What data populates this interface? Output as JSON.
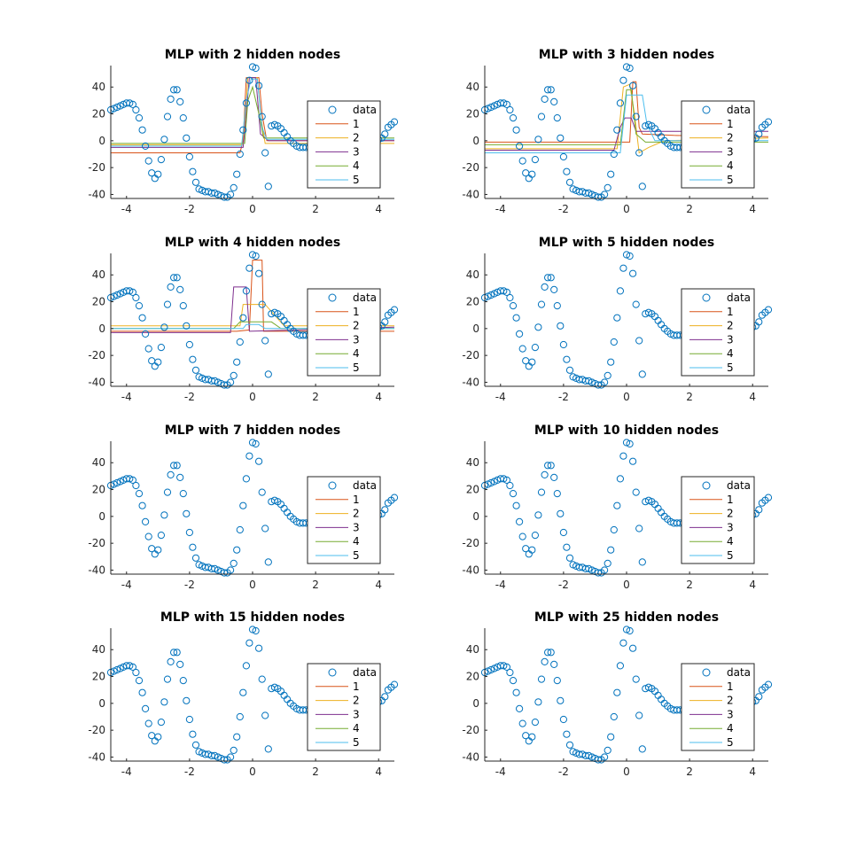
{
  "colors": {
    "data": "#0072BD",
    "series": [
      "#D95319",
      "#EDB120",
      "#7E2F8E",
      "#77AC30",
      "#4DBEEE"
    ],
    "axis": "#262626"
  },
  "chart_data": [
    {
      "type": "line",
      "title": "MLP with 2 hidden nodes",
      "xlim": [
        -4.5,
        4.5
      ],
      "ylim": [
        -43,
        56
      ],
      "xticks": [
        -4,
        -2,
        0,
        2,
        4
      ],
      "yticks": [
        -40,
        -20,
        0,
        20,
        40
      ],
      "legend": {
        "position": "inside-right",
        "entries": [
          "data",
          "1",
          "2",
          "3",
          "4",
          "5"
        ]
      },
      "series": [
        {
          "name": "1",
          "points": [
            [
              -4.5,
              -9
            ],
            [
              -0.4,
              -9
            ],
            [
              -0.3,
              0
            ],
            [
              -0.2,
              47
            ],
            [
              0.2,
              47
            ],
            [
              0.3,
              20
            ],
            [
              0.45,
              0
            ],
            [
              4.5,
              0
            ]
          ]
        },
        {
          "name": "2",
          "points": [
            [
              -4.5,
              -3
            ],
            [
              -0.35,
              -3
            ],
            [
              -0.25,
              10
            ],
            [
              -0.15,
              47
            ],
            [
              0.15,
              47
            ],
            [
              0.25,
              20
            ],
            [
              0.4,
              -2
            ],
            [
              4.5,
              -2
            ]
          ]
        },
        {
          "name": "3",
          "points": [
            [
              -4.5,
              -5
            ],
            [
              -0.3,
              -5
            ],
            [
              -0.2,
              20
            ],
            [
              -0.1,
              47
            ],
            [
              0.1,
              47
            ],
            [
              0.25,
              5
            ],
            [
              0.5,
              0
            ],
            [
              4.5,
              0
            ]
          ]
        },
        {
          "name": "4",
          "points": [
            [
              -4.5,
              -2
            ],
            [
              -0.25,
              -2
            ],
            [
              -0.15,
              30
            ],
            [
              0,
              40
            ],
            [
              0.2,
              20
            ],
            [
              0.35,
              2
            ],
            [
              4.5,
              2
            ]
          ]
        },
        {
          "name": "5",
          "points": [
            [
              -4.5,
              -4
            ],
            [
              -0.35,
              -4
            ],
            [
              -0.2,
              30
            ],
            [
              -0.05,
              46
            ],
            [
              0.15,
              46
            ],
            [
              0.3,
              10
            ],
            [
              0.45,
              1
            ],
            [
              4.5,
              1
            ]
          ]
        }
      ]
    },
    {
      "type": "line",
      "title": "MLP with 3 hidden nodes",
      "xlim": [
        -4.5,
        4.5
      ],
      "ylim": [
        -43,
        56
      ],
      "xticks": [
        -4,
        -2,
        0,
        2,
        4
      ],
      "yticks": [
        -40,
        -20,
        0,
        20,
        40
      ],
      "legend": {
        "position": "inside-right",
        "entries": [
          "data",
          "1",
          "2",
          "3",
          "4",
          "5"
        ]
      },
      "series": [
        {
          "name": "1",
          "points": [
            [
              -4.5,
              -1
            ],
            [
              0.1,
              -1
            ],
            [
              0.2,
              44
            ],
            [
              0.3,
              44
            ],
            [
              0.4,
              10
            ],
            [
              0.5,
              5
            ],
            [
              1.5,
              4
            ],
            [
              4.5,
              3
            ]
          ]
        },
        {
          "name": "2",
          "points": [
            [
              -4.5,
              -6
            ],
            [
              -0.3,
              -6
            ],
            [
              -0.1,
              40
            ],
            [
              0.1,
              42
            ],
            [
              0.25,
              20
            ],
            [
              0.4,
              -9
            ],
            [
              0.7,
              -5
            ],
            [
              1.2,
              0
            ],
            [
              4.5,
              2
            ]
          ]
        },
        {
          "name": "3",
          "points": [
            [
              -4.5,
              -7
            ],
            [
              -0.4,
              -7
            ],
            [
              -0.2,
              10
            ],
            [
              -0.05,
              17
            ],
            [
              0.15,
              17
            ],
            [
              0.3,
              7
            ],
            [
              1.2,
              7
            ],
            [
              4.5,
              7
            ]
          ]
        },
        {
          "name": "4",
          "points": [
            [
              -4.5,
              -3
            ],
            [
              -0.2,
              -3
            ],
            [
              0,
              38
            ],
            [
              0.15,
              38
            ],
            [
              0.3,
              5
            ],
            [
              0.6,
              -1
            ],
            [
              4.5,
              -1
            ]
          ]
        },
        {
          "name": "5",
          "points": [
            [
              -4.5,
              -9
            ],
            [
              -0.2,
              -9
            ],
            [
              0,
              34
            ],
            [
              0.5,
              34
            ],
            [
              0.65,
              12
            ],
            [
              0.9,
              0
            ],
            [
              4.5,
              0
            ]
          ]
        }
      ]
    },
    {
      "type": "line",
      "title": "MLP with 4 hidden nodes",
      "xlim": [
        -4.5,
        4.5
      ],
      "ylim": [
        -43,
        56
      ],
      "xticks": [
        -4,
        -2,
        0,
        2,
        4
      ],
      "yticks": [
        -40,
        -20,
        0,
        20,
        40
      ],
      "legend": {
        "position": "inside-right",
        "entries": [
          "data",
          "1",
          "2",
          "3",
          "4",
          "5"
        ]
      },
      "series": [
        {
          "name": "1",
          "points": [
            [
              -4.5,
              -2
            ],
            [
              -0.5,
              -2
            ],
            [
              -0.1,
              -1
            ],
            [
              0,
              51
            ],
            [
              0.3,
              51
            ],
            [
              0.35,
              -2
            ],
            [
              4.5,
              -2
            ]
          ]
        },
        {
          "name": "2",
          "points": [
            [
              -4.5,
              2
            ],
            [
              -0.4,
              2
            ],
            [
              -0.3,
              18
            ],
            [
              0.4,
              18
            ],
            [
              0.7,
              10
            ],
            [
              1.0,
              2
            ],
            [
              4.5,
              2
            ]
          ]
        },
        {
          "name": "3",
          "points": [
            [
              -4.5,
              -3
            ],
            [
              -0.7,
              -3
            ],
            [
              -0.6,
              31
            ],
            [
              -0.2,
              31
            ],
            [
              -0.1,
              -2
            ],
            [
              4.5,
              1
            ]
          ]
        },
        {
          "name": "4",
          "points": [
            [
              -4.5,
              0
            ],
            [
              -0.6,
              0
            ],
            [
              -0.4,
              5
            ],
            [
              0.6,
              5
            ],
            [
              0.9,
              0
            ],
            [
              4.5,
              0
            ]
          ]
        },
        {
          "name": "5",
          "points": [
            [
              -4.5,
              0
            ],
            [
              -0.3,
              0
            ],
            [
              -0.2,
              3
            ],
            [
              0.2,
              3
            ],
            [
              0.4,
              0
            ],
            [
              4.5,
              0
            ]
          ]
        }
      ]
    },
    {
      "type": "line",
      "title": "MLP with 5 hidden nodes",
      "xlim": [
        -4.5,
        4.5
      ],
      "ylim": [
        -43,
        56
      ],
      "xticks": [
        -4,
        -2,
        0,
        2,
        4
      ],
      "yticks": [
        -40,
        -20,
        0,
        20,
        40
      ],
      "legend": {
        "position": "inside-right",
        "entries": [
          "data",
          "1",
          "2",
          "3",
          "4",
          "5"
        ]
      },
      "series": []
    },
    {
      "type": "line",
      "title": "MLP with 7 hidden nodes",
      "xlim": [
        -4.5,
        4.5
      ],
      "ylim": [
        -43,
        56
      ],
      "xticks": [
        -4,
        -2,
        0,
        2,
        4
      ],
      "yticks": [
        -40,
        -20,
        0,
        20,
        40
      ],
      "legend": {
        "position": "inside-right",
        "entries": [
          "data",
          "1",
          "2",
          "3",
          "4",
          "5"
        ]
      },
      "series": []
    },
    {
      "type": "line",
      "title": "MLP with 10 hidden nodes",
      "xlim": [
        -4.5,
        4.5
      ],
      "ylim": [
        -43,
        56
      ],
      "xticks": [
        -4,
        -2,
        0,
        2,
        4
      ],
      "yticks": [
        -40,
        -20,
        0,
        20,
        40
      ],
      "legend": {
        "position": "inside-right",
        "entries": [
          "data",
          "1",
          "2",
          "3",
          "4",
          "5"
        ]
      },
      "series": []
    },
    {
      "type": "line",
      "title": "MLP with 15 hidden nodes",
      "xlim": [
        -4.5,
        4.5
      ],
      "ylim": [
        -43,
        56
      ],
      "xticks": [
        -4,
        -2,
        0,
        2,
        4
      ],
      "yticks": [
        -40,
        -20,
        0,
        20,
        40
      ],
      "legend": {
        "position": "inside-right",
        "entries": [
          "data",
          "1",
          "2",
          "3",
          "4",
          "5"
        ]
      },
      "series": []
    },
    {
      "type": "line",
      "title": "MLP with 25 hidden nodes",
      "xlim": [
        -4.5,
        4.5
      ],
      "ylim": [
        -43,
        56
      ],
      "xticks": [
        -4,
        -2,
        0,
        2,
        4
      ],
      "yticks": [
        -40,
        -20,
        0,
        20,
        40
      ],
      "legend": {
        "position": "inside-right",
        "entries": [
          "data",
          "1",
          "2",
          "3",
          "4",
          "5"
        ]
      },
      "series": []
    }
  ],
  "scatter_data": {
    "name": "data",
    "points": [
      [
        -4.5,
        23
      ],
      [
        -4.4,
        24
      ],
      [
        -4.3,
        25
      ],
      [
        -4.2,
        26
      ],
      [
        -4.1,
        27
      ],
      [
        -4.0,
        28
      ],
      [
        -3.9,
        28
      ],
      [
        -3.8,
        27
      ],
      [
        -3.7,
        23
      ],
      [
        -3.6,
        17
      ],
      [
        -3.5,
        8
      ],
      [
        -3.4,
        -4
      ],
      [
        -3.3,
        -15
      ],
      [
        -3.2,
        -24
      ],
      [
        -3.1,
        -28
      ],
      [
        -3.0,
        -25
      ],
      [
        -2.9,
        -14
      ],
      [
        -2.8,
        1
      ],
      [
        -2.7,
        18
      ],
      [
        -2.6,
        31
      ],
      [
        -2.5,
        38
      ],
      [
        -2.4,
        38
      ],
      [
        -2.3,
        29
      ],
      [
        -2.2,
        17
      ],
      [
        -2.1,
        2
      ],
      [
        -2.0,
        -12
      ],
      [
        -1.9,
        -23
      ],
      [
        -1.8,
        -31
      ],
      [
        -1.7,
        -36
      ],
      [
        -1.6,
        -37
      ],
      [
        -1.5,
        -38
      ],
      [
        -1.4,
        -38
      ],
      [
        -1.3,
        -39
      ],
      [
        -1.2,
        -39
      ],
      [
        -1.1,
        -40
      ],
      [
        -1.0,
        -41
      ],
      [
        -0.9,
        -42
      ],
      [
        -0.8,
        -42
      ],
      [
        -0.7,
        -40
      ],
      [
        -0.6,
        -35
      ],
      [
        -0.5,
        -25
      ],
      [
        -0.4,
        -10
      ],
      [
        -0.3,
        8
      ],
      [
        -0.2,
        28
      ],
      [
        -0.1,
        45
      ],
      [
        0.0,
        55
      ],
      [
        0.1,
        54
      ],
      [
        0.2,
        41
      ],
      [
        0.3,
        18
      ],
      [
        0.4,
        -9
      ],
      [
        0.5,
        -34
      ],
      [
        0.6,
        11
      ],
      [
        0.7,
        12
      ],
      [
        0.8,
        11
      ],
      [
        0.9,
        9
      ],
      [
        1.0,
        6
      ],
      [
        1.1,
        3
      ],
      [
        1.2,
        0
      ],
      [
        1.3,
        -2
      ],
      [
        1.4,
        -4
      ],
      [
        1.5,
        -5
      ],
      [
        1.6,
        -5
      ],
      [
        1.7,
        -5
      ],
      [
        1.8,
        -5
      ],
      [
        1.9,
        -4
      ],
      [
        2.0,
        -4
      ],
      [
        2.1,
        -3
      ],
      [
        2.2,
        -3
      ],
      [
        2.3,
        -2
      ],
      [
        2.4,
        -2
      ],
      [
        2.5,
        -1
      ],
      [
        2.6,
        -1
      ],
      [
        2.7,
        0
      ],
      [
        2.8,
        0
      ],
      [
        2.9,
        0
      ],
      [
        3.0,
        0
      ],
      [
        3.1,
        0
      ],
      [
        3.2,
        1
      ],
      [
        3.3,
        1
      ],
      [
        3.4,
        1
      ],
      [
        3.5,
        1
      ],
      [
        3.6,
        1
      ],
      [
        3.7,
        1
      ],
      [
        3.8,
        1
      ],
      [
        3.9,
        1
      ],
      [
        4.0,
        1
      ],
      [
        4.1,
        2
      ],
      [
        4.2,
        5
      ],
      [
        4.3,
        10
      ],
      [
        4.4,
        12
      ],
      [
        4.5,
        14
      ]
    ]
  }
}
